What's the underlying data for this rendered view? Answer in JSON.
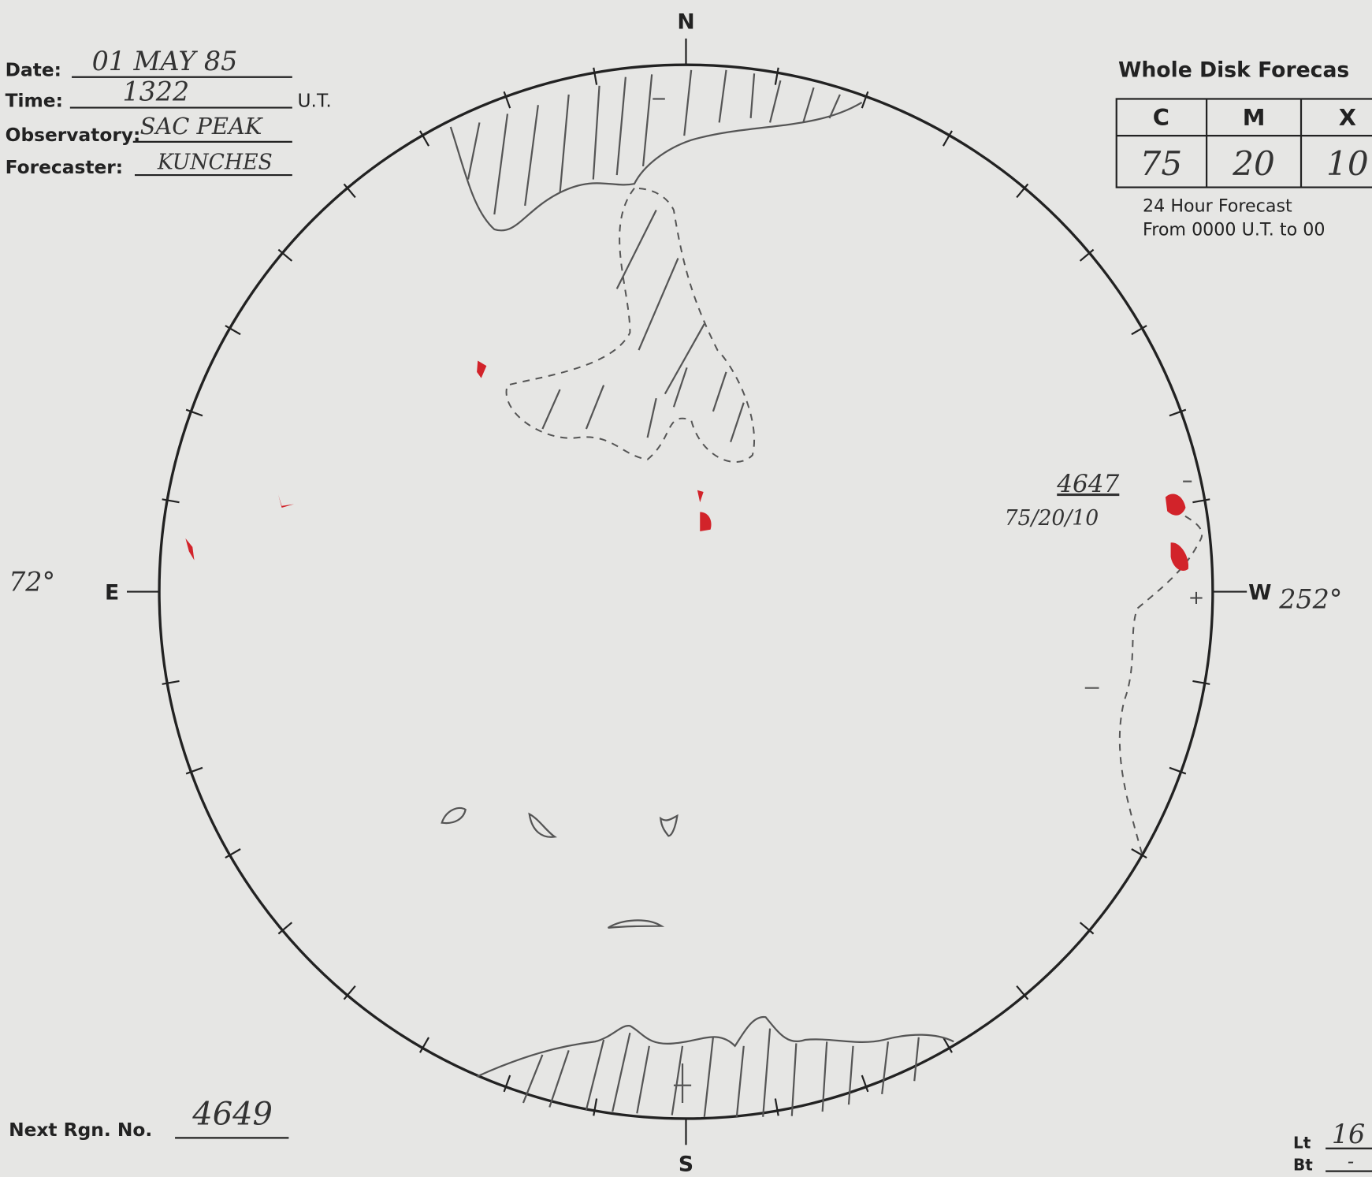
{
  "header": {
    "date_label": "Date:",
    "date": "01 MAY 85",
    "time_label": "Time:",
    "time": "1322",
    "time_unit": "U.T.",
    "observatory_label": "Observatory:",
    "observatory": "SAC PEAK",
    "forecaster_label": "Forecaster:",
    "forecaster": "KUNCHES"
  },
  "forecast": {
    "title": "Whole Disk Forecas",
    "columns": [
      "C",
      "M",
      "X"
    ],
    "values": [
      "75",
      "20",
      "10"
    ],
    "note_1": "24 Hour Forecast",
    "note_2": "From 0000 U.T. to 00"
  },
  "disk": {
    "north": "N",
    "south": "S",
    "east": "E",
    "west": "W",
    "east_longitude": "72°",
    "west_longitude": "252°",
    "region": {
      "number": "4647",
      "probabilities": "75/20/10"
    }
  },
  "footer": {
    "next_region_label": "Next Rgn. No.",
    "next_region": "4649",
    "lt_label": "Lt",
    "lt_value": "16",
    "bt_label": "Bt",
    "bt_value": "-"
  }
}
